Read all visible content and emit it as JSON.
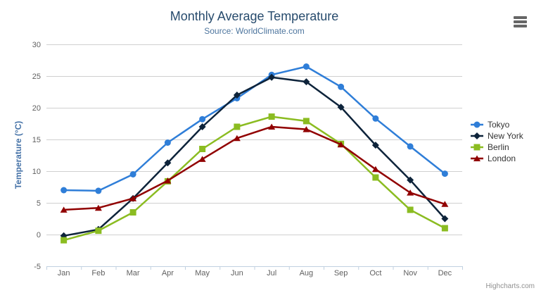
{
  "chart": {
    "credit": "Highcharts.com",
    "icons": {
      "export_menu": "hamburger-menu-icon"
    },
    "colors": {
      "title": "#274b6d",
      "subtitle": "#4d759e",
      "axis_title": "#4572A7",
      "axis_labels": "#606060",
      "grid_line": "#D0D0D0",
      "axis_line": "#C0D0E0",
      "legend_text": "#333333",
      "credit_text": "#909090"
    }
  },
  "chart_data": {
    "type": "line",
    "title": "Monthly Average Temperature",
    "subtitle": "Source: WorldClimate.com",
    "categories": [
      "Jan",
      "Feb",
      "Mar",
      "Apr",
      "May",
      "Jun",
      "Jul",
      "Aug",
      "Sep",
      "Oct",
      "Nov",
      "Dec"
    ],
    "xlabel": "",
    "ylabel": "Temperature (°C)",
    "ylim": [
      -5,
      30
    ],
    "ytick_interval": 5,
    "yticks": [
      -5,
      0,
      5,
      10,
      15,
      20,
      25,
      30
    ],
    "grid": true,
    "legend_position": "right",
    "series": [
      {
        "name": "Tokyo",
        "color": "#2f7ed8",
        "marker": "circle",
        "values": [
          7.0,
          6.9,
          9.5,
          14.5,
          18.2,
          21.5,
          25.2,
          26.5,
          23.3,
          18.3,
          13.9,
          9.6
        ]
      },
      {
        "name": "New York",
        "color": "#0d233a",
        "marker": "diamond",
        "values": [
          -0.2,
          0.8,
          5.7,
          11.3,
          17.0,
          22.0,
          24.8,
          24.1,
          20.1,
          14.1,
          8.6,
          2.5
        ]
      },
      {
        "name": "Berlin",
        "color": "#8bbc21",
        "marker": "square",
        "values": [
          -0.9,
          0.6,
          3.5,
          8.4,
          13.5,
          17.0,
          18.6,
          17.9,
          14.3,
          9.0,
          3.9,
          1.0
        ]
      },
      {
        "name": "London",
        "color": "#910000",
        "marker": "triangle",
        "values": [
          3.9,
          4.2,
          5.7,
          8.5,
          11.9,
          15.2,
          17.0,
          16.6,
          14.2,
          10.3,
          6.6,
          4.8
        ]
      }
    ]
  }
}
